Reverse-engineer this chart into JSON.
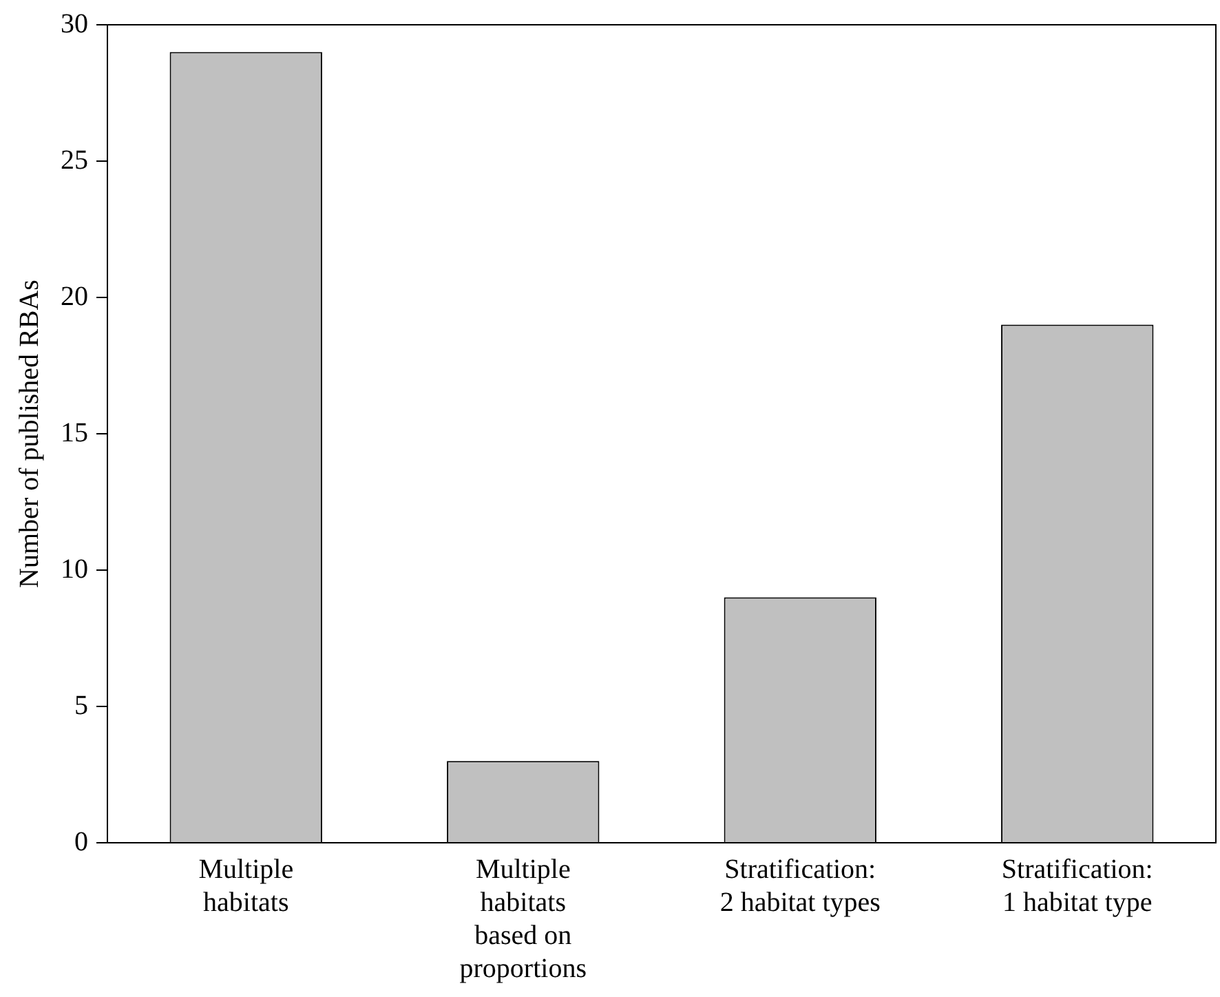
{
  "chart_data": {
    "type": "bar",
    "ylabel": "Number of published RBAs",
    "categories": [
      "Multiple\nhabitats",
      "Multiple\nhabitats\nbased on\nproportions",
      "Stratification:\n2 habitat types",
      "Stratification:\n1 habitat type"
    ],
    "values": [
      29,
      3,
      9,
      19
    ],
    "color": "#c0c0c0",
    "ylim": [
      0,
      30
    ],
    "yticks": [
      0,
      5,
      10,
      15,
      20,
      25,
      30
    ],
    "grid": false,
    "legend": false
  }
}
